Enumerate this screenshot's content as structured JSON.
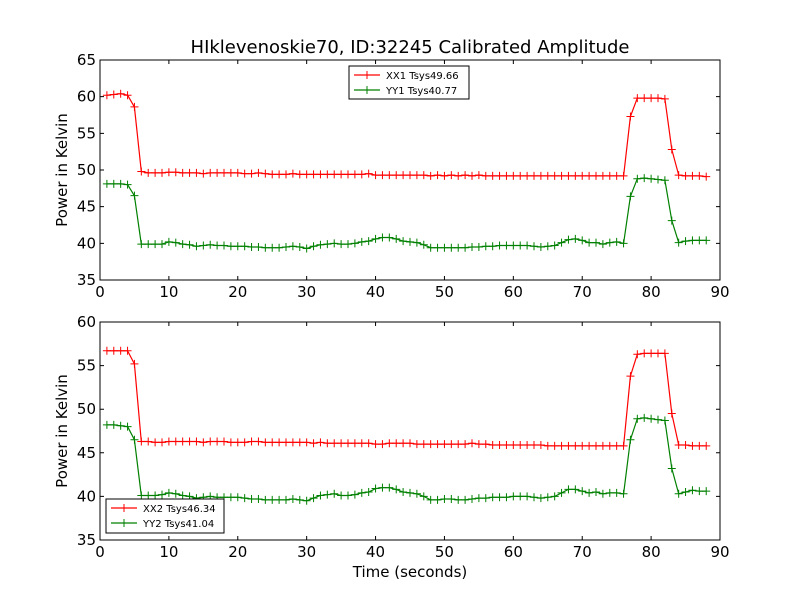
{
  "title": "HIklevenoskie70, ID:32245 Calibrated Amplitude",
  "xlabel": "Time (seconds)",
  "colors": {
    "red": "#ff0000",
    "green": "#008000"
  },
  "chart_data": [
    {
      "type": "line",
      "title": "HIklevenoskie70, ID:32245 Calibrated Amplitude",
      "xlabel": "",
      "ylabel": "Power in Kelvin",
      "xlim": [
        0,
        90
      ],
      "ylim": [
        35,
        65
      ],
      "xticks": [
        0,
        10,
        20,
        30,
        40,
        50,
        60,
        70,
        80,
        90
      ],
      "yticks": [
        35,
        40,
        45,
        50,
        55,
        60,
        65
      ],
      "legend": "top-center",
      "series": [
        {
          "name": "XX1 Tsys49.66",
          "color": "#ff0000",
          "x": [
            1,
            2,
            3,
            4,
            5,
            6,
            7,
            8,
            9,
            10,
            11,
            12,
            13,
            14,
            15,
            16,
            17,
            18,
            19,
            20,
            21,
            22,
            23,
            24,
            25,
            26,
            27,
            28,
            29,
            30,
            31,
            32,
            33,
            34,
            35,
            36,
            37,
            38,
            39,
            40,
            41,
            42,
            43,
            44,
            45,
            46,
            47,
            48,
            49,
            50,
            51,
            52,
            53,
            54,
            55,
            56,
            57,
            58,
            59,
            60,
            61,
            62,
            63,
            64,
            65,
            66,
            67,
            68,
            69,
            70,
            71,
            72,
            73,
            74,
            75,
            76,
            77,
            78,
            79,
            80,
            81,
            82,
            83,
            84,
            85,
            86,
            87,
            88
          ],
          "values": [
            60.2,
            60.3,
            60.4,
            60.2,
            58.6,
            49.8,
            49.6,
            49.6,
            49.6,
            49.7,
            49.7,
            49.6,
            49.6,
            49.6,
            49.5,
            49.6,
            49.6,
            49.6,
            49.6,
            49.6,
            49.5,
            49.5,
            49.6,
            49.5,
            49.4,
            49.4,
            49.4,
            49.5,
            49.4,
            49.4,
            49.4,
            49.4,
            49.4,
            49.4,
            49.4,
            49.4,
            49.4,
            49.4,
            49.5,
            49.3,
            49.3,
            49.3,
            49.3,
            49.3,
            49.3,
            49.3,
            49.3,
            49.2,
            49.3,
            49.2,
            49.3,
            49.2,
            49.3,
            49.2,
            49.3,
            49.2,
            49.2,
            49.2,
            49.2,
            49.2,
            49.2,
            49.2,
            49.2,
            49.2,
            49.2,
            49.2,
            49.2,
            49.2,
            49.2,
            49.2,
            49.2,
            49.2,
            49.2,
            49.2,
            49.2,
            49.2,
            57.3,
            59.8,
            59.8,
            59.8,
            59.8,
            59.7,
            52.8,
            49.3,
            49.2,
            49.2,
            49.2,
            49.1
          ]
        },
        {
          "name": "YY1 Tsys40.77",
          "color": "#008000",
          "x": [
            1,
            2,
            3,
            4,
            5,
            6,
            7,
            8,
            9,
            10,
            11,
            12,
            13,
            14,
            15,
            16,
            17,
            18,
            19,
            20,
            21,
            22,
            23,
            24,
            25,
            26,
            27,
            28,
            29,
            30,
            31,
            32,
            33,
            34,
            35,
            36,
            37,
            38,
            39,
            40,
            41,
            42,
            43,
            44,
            45,
            46,
            47,
            48,
            49,
            50,
            51,
            52,
            53,
            54,
            55,
            56,
            57,
            58,
            59,
            60,
            61,
            62,
            63,
            64,
            65,
            66,
            67,
            68,
            69,
            70,
            71,
            72,
            73,
            74,
            75,
            76,
            77,
            78,
            79,
            80,
            81,
            82,
            83,
            84,
            85,
            86,
            87,
            88
          ],
          "values": [
            48.1,
            48.1,
            48.1,
            48.0,
            46.5,
            39.9,
            39.9,
            39.9,
            39.9,
            40.2,
            40.1,
            39.9,
            39.8,
            39.6,
            39.7,
            39.8,
            39.7,
            39.7,
            39.6,
            39.6,
            39.6,
            39.5,
            39.5,
            39.4,
            39.4,
            39.4,
            39.5,
            39.6,
            39.5,
            39.3,
            39.6,
            39.8,
            39.9,
            40.0,
            39.9,
            39.9,
            40.0,
            40.2,
            40.3,
            40.6,
            40.8,
            40.8,
            40.6,
            40.3,
            40.2,
            40.1,
            39.8,
            39.4,
            39.4,
            39.4,
            39.4,
            39.4,
            39.4,
            39.5,
            39.5,
            39.6,
            39.6,
            39.7,
            39.7,
            39.7,
            39.7,
            39.7,
            39.6,
            39.5,
            39.6,
            39.7,
            40.1,
            40.5,
            40.6,
            40.4,
            40.1,
            40.1,
            39.9,
            40.1,
            40.2,
            40.0,
            46.4,
            48.8,
            48.9,
            48.8,
            48.7,
            48.6,
            43.1,
            40.1,
            40.3,
            40.4,
            40.4,
            40.4
          ]
        }
      ]
    },
    {
      "type": "line",
      "title": "",
      "xlabel": "Time (seconds)",
      "ylabel": "Power in Kelvin",
      "xlim": [
        0,
        90
      ],
      "ylim": [
        35,
        60
      ],
      "xticks": [
        0,
        10,
        20,
        30,
        40,
        50,
        60,
        70,
        80,
        90
      ],
      "yticks": [
        35,
        40,
        45,
        50,
        55,
        60
      ],
      "legend": "bottom-left",
      "series": [
        {
          "name": "XX2 Tsys46.34",
          "color": "#ff0000",
          "x": [
            1,
            2,
            3,
            4,
            5,
            6,
            7,
            8,
            9,
            10,
            11,
            12,
            13,
            14,
            15,
            16,
            17,
            18,
            19,
            20,
            21,
            22,
            23,
            24,
            25,
            26,
            27,
            28,
            29,
            30,
            31,
            32,
            33,
            34,
            35,
            36,
            37,
            38,
            39,
            40,
            41,
            42,
            43,
            44,
            45,
            46,
            47,
            48,
            49,
            50,
            51,
            52,
            53,
            54,
            55,
            56,
            57,
            58,
            59,
            60,
            61,
            62,
            63,
            64,
            65,
            66,
            67,
            68,
            69,
            70,
            71,
            72,
            73,
            74,
            75,
            76,
            77,
            78,
            79,
            80,
            81,
            82,
            83,
            84,
            85,
            86,
            87,
            88
          ],
          "values": [
            56.7,
            56.7,
            56.7,
            56.7,
            55.2,
            46.3,
            46.3,
            46.2,
            46.2,
            46.3,
            46.3,
            46.3,
            46.3,
            46.3,
            46.2,
            46.3,
            46.3,
            46.3,
            46.2,
            46.2,
            46.2,
            46.3,
            46.3,
            46.2,
            46.2,
            46.2,
            46.2,
            46.2,
            46.2,
            46.2,
            46.1,
            46.2,
            46.1,
            46.1,
            46.1,
            46.1,
            46.1,
            46.1,
            46.1,
            46.0,
            46.0,
            46.1,
            46.1,
            46.1,
            46.1,
            46.0,
            46.0,
            46.0,
            46.0,
            46.0,
            46.0,
            46.0,
            46.0,
            46.1,
            46.0,
            46.0,
            45.9,
            45.9,
            45.9,
            45.9,
            45.9,
            45.9,
            45.9,
            45.9,
            45.8,
            45.8,
            45.8,
            45.8,
            45.8,
            45.8,
            45.8,
            45.8,
            45.8,
            45.8,
            45.8,
            45.8,
            53.8,
            56.3,
            56.4,
            56.4,
            56.4,
            56.4,
            49.5,
            45.9,
            45.9,
            45.8,
            45.8,
            45.8
          ]
        },
        {
          "name": "YY2 Tsys41.04",
          "color": "#008000",
          "x": [
            1,
            2,
            3,
            4,
            5,
            6,
            7,
            8,
            9,
            10,
            11,
            12,
            13,
            14,
            15,
            16,
            17,
            18,
            19,
            20,
            21,
            22,
            23,
            24,
            25,
            26,
            27,
            28,
            29,
            30,
            31,
            32,
            33,
            34,
            35,
            36,
            37,
            38,
            39,
            40,
            41,
            42,
            43,
            44,
            45,
            46,
            47,
            48,
            49,
            50,
            51,
            52,
            53,
            54,
            55,
            56,
            57,
            58,
            59,
            60,
            61,
            62,
            63,
            64,
            65,
            66,
            67,
            68,
            69,
            70,
            71,
            72,
            73,
            74,
            75,
            76,
            77,
            78,
            79,
            80,
            81,
            82,
            83,
            84,
            85,
            86,
            87,
            88
          ],
          "values": [
            48.2,
            48.2,
            48.1,
            48.0,
            46.5,
            40.1,
            40.1,
            40.1,
            40.2,
            40.4,
            40.3,
            40.1,
            40.0,
            39.8,
            39.9,
            40.0,
            39.9,
            39.9,
            39.9,
            39.9,
            39.8,
            39.7,
            39.7,
            39.6,
            39.6,
            39.6,
            39.6,
            39.7,
            39.6,
            39.5,
            39.8,
            40.1,
            40.2,
            40.3,
            40.1,
            40.1,
            40.2,
            40.4,
            40.5,
            40.9,
            41.0,
            41.0,
            40.8,
            40.5,
            40.4,
            40.3,
            40.0,
            39.6,
            39.6,
            39.7,
            39.7,
            39.6,
            39.6,
            39.7,
            39.8,
            39.8,
            39.9,
            39.9,
            39.9,
            40.0,
            40.0,
            40.0,
            39.9,
            39.8,
            39.9,
            40.0,
            40.4,
            40.8,
            40.8,
            40.6,
            40.4,
            40.5,
            40.3,
            40.4,
            40.4,
            40.3,
            46.5,
            48.9,
            49.0,
            48.9,
            48.8,
            48.7,
            43.2,
            40.3,
            40.5,
            40.7,
            40.6,
            40.6
          ]
        }
      ]
    }
  ]
}
